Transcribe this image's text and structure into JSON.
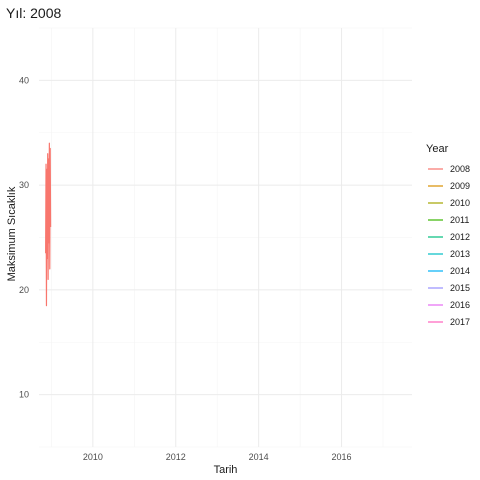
{
  "chart_data": {
    "type": "line",
    "title": "Yıl: 2008",
    "xlabel": "Tarih",
    "ylabel": "Maksimum Sıcaklık",
    "x_ticks": [
      "2010",
      "2012",
      "2014",
      "2016"
    ],
    "x_tick_values": [
      2010,
      2012,
      2014,
      2016
    ],
    "y_ticks": [
      "10",
      "20",
      "30",
      "40"
    ],
    "y_tick_values": [
      10,
      20,
      30,
      40
    ],
    "xlim": [
      2008.7,
      2017.7
    ],
    "ylim": [
      5,
      45
    ],
    "grid": true,
    "legend": {
      "title": "Year",
      "position": "right"
    },
    "series": [
      {
        "name": "2008",
        "color": "#F8766D",
        "x": [
          2008.86,
          2008.87,
          2008.88,
          2008.89,
          2008.9,
          2008.91,
          2008.92,
          2008.93,
          2008.94,
          2008.95,
          2008.96,
          2008.97,
          2008.98
        ],
        "y": [
          23.5,
          32.0,
          18.5,
          31.5,
          23.0,
          33.0,
          21.0,
          32.5,
          24.5,
          34.0,
          22.0,
          33.5,
          26.0
        ]
      },
      {
        "name": "2009",
        "color": "#D89000",
        "x": [],
        "y": []
      },
      {
        "name": "2010",
        "color": "#A3A500",
        "x": [],
        "y": []
      },
      {
        "name": "2011",
        "color": "#39B600",
        "x": [],
        "y": []
      },
      {
        "name": "2012",
        "color": "#00BF7D",
        "x": [],
        "y": []
      },
      {
        "name": "2013",
        "color": "#00BFC4",
        "x": [],
        "y": []
      },
      {
        "name": "2014",
        "color": "#00B0F6",
        "x": [],
        "y": []
      },
      {
        "name": "2015",
        "color": "#9590FF",
        "x": [],
        "y": []
      },
      {
        "name": "2016",
        "color": "#E76BF3",
        "x": [],
        "y": []
      },
      {
        "name": "2017",
        "color": "#FF62BC",
        "x": [],
        "y": []
      }
    ]
  }
}
